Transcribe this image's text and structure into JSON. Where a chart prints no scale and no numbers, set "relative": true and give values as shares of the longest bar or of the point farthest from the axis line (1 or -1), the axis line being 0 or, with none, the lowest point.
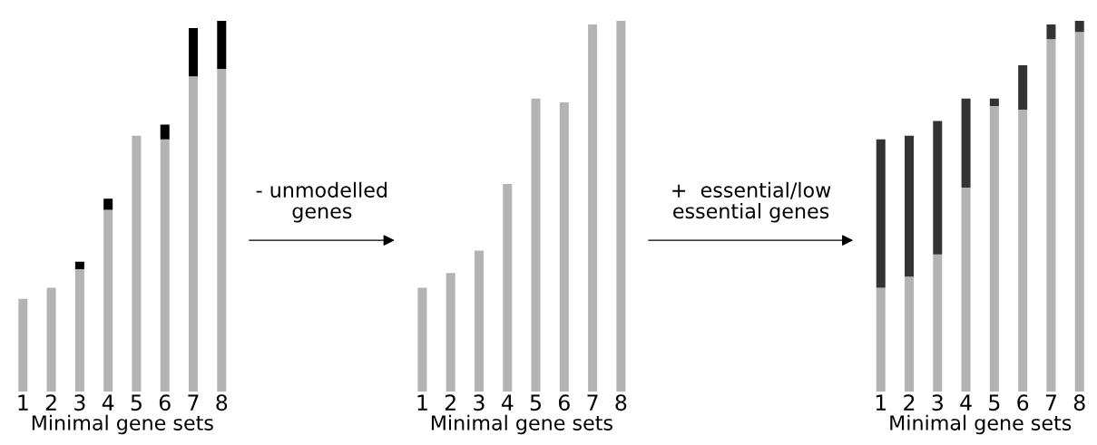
{
  "chart_data": [
    {
      "type": "bar",
      "relative": true,
      "stacked": true,
      "categories": [
        "1",
        "2",
        "3",
        "4",
        "5",
        "6",
        "7",
        "8"
      ],
      "xlabel": "Minimal gene sets",
      "annotations": [
        "- unmodelled\ngenes"
      ],
      "series": [
        {
          "color": "#b3b3b3",
          "values": [
            0.25,
            0.28,
            0.33,
            0.49,
            0.69,
            0.68,
            0.85,
            0.87
          ]
        },
        {
          "color": "#000000",
          "values": [
            0,
            0,
            0.02,
            0.03,
            0,
            0.04,
            0.13,
            0.13
          ]
        }
      ]
    },
    {
      "type": "bar",
      "relative": true,
      "categories": [
        "1",
        "2",
        "3",
        "4",
        "5",
        "6",
        "7",
        "8"
      ],
      "xlabel": "Minimal gene sets",
      "annotations": [
        "+  essential/low\nessential genes"
      ],
      "series": [
        {
          "color": "#b3b3b3",
          "values": [
            0.28,
            0.32,
            0.38,
            0.56,
            0.79,
            0.78,
            0.99,
            1
          ]
        }
      ]
    },
    {
      "type": "bar",
      "relative": true,
      "stacked": true,
      "categories": [
        "1",
        "2",
        "3",
        "4",
        "5",
        "6",
        "7",
        "8"
      ],
      "xlabel": "Minimal gene sets",
      "series": [
        {
          "color": "#b3b3b3",
          "values": [
            0.28,
            0.31,
            0.37,
            0.55,
            0.77,
            0.76,
            0.95,
            0.97
          ]
        },
        {
          "color": "#333333",
          "values": [
            0.4,
            0.38,
            0.36,
            0.24,
            0.02,
            0.12,
            0.04,
            0.03
          ]
        }
      ]
    }
  ]
}
